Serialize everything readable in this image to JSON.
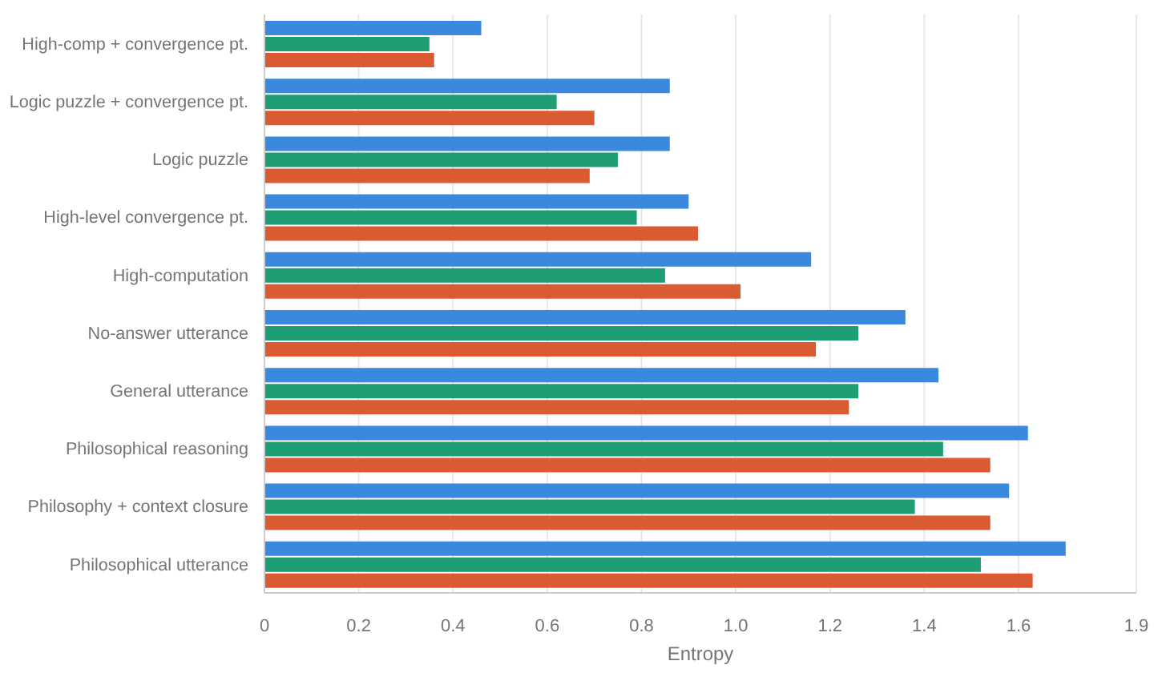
{
  "chart_data": {
    "type": "bar",
    "orientation": "horizontal",
    "xlabel": "Entropy",
    "categories": [
      "High-comp + convergence pt.",
      "Logic puzzle + convergence pt.",
      "Logic puzzle",
      "High-level convergence pt.",
      "High-computation",
      "No-answer utterance",
      "General utterance",
      "Philosophical reasoning",
      "Philosophy + context closure",
      "Philosophical utterance"
    ],
    "series": [
      {
        "color": "#3a89de",
        "values": [
          0.46,
          0.86,
          0.86,
          0.9,
          1.16,
          1.36,
          1.43,
          1.62,
          1.58,
          1.7
        ]
      },
      {
        "color": "#1f9e75",
        "values": [
          0.35,
          0.62,
          0.75,
          0.79,
          0.85,
          1.26,
          1.26,
          1.44,
          1.38,
          1.52
        ]
      },
      {
        "color": "#da5b32",
        "values": [
          0.36,
          0.7,
          0.69,
          0.92,
          1.01,
          1.17,
          1.24,
          1.54,
          1.54,
          1.63
        ]
      }
    ],
    "xlim": [
      0,
      1.85
    ],
    "xticks": [
      0,
      0.2,
      0.4,
      0.6,
      0.8,
      {
        "value": 1,
        "label": "1.0"
      },
      1.2,
      1.4,
      1.6,
      {
        "value": 1.85,
        "label": "1.9"
      }
    ],
    "grid": "x"
  }
}
